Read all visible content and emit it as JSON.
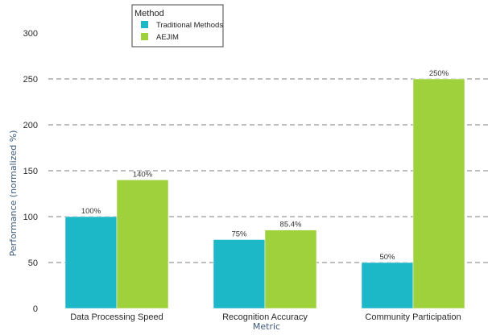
{
  "chart_data": {
    "type": "bar",
    "title": "",
    "xlabel": "Metric",
    "ylabel": "Performance (normalized %)",
    "categories": [
      "Data Processing Speed",
      "Recognition Accuracy",
      "Community Participation"
    ],
    "series": [
      {
        "name": "Traditional Methods",
        "color": "#1cb8c8",
        "values": [
          100,
          75,
          50
        ],
        "labels": [
          "100%",
          "75%",
          "50%"
        ]
      },
      {
        "name": "AEJIM",
        "color": "#9ed13b",
        "values": [
          140,
          85.4,
          250
        ],
        "labels": [
          "140%",
          "85.4%",
          "250%"
        ]
      }
    ],
    "ylim": [
      0,
      300
    ],
    "yticks": [
      "0",
      "50",
      "100",
      "150",
      "200",
      "250",
      "300"
    ],
    "grid": true,
    "grid_style": "dashed",
    "legend": {
      "title": "Method",
      "placement": "top-left"
    }
  }
}
